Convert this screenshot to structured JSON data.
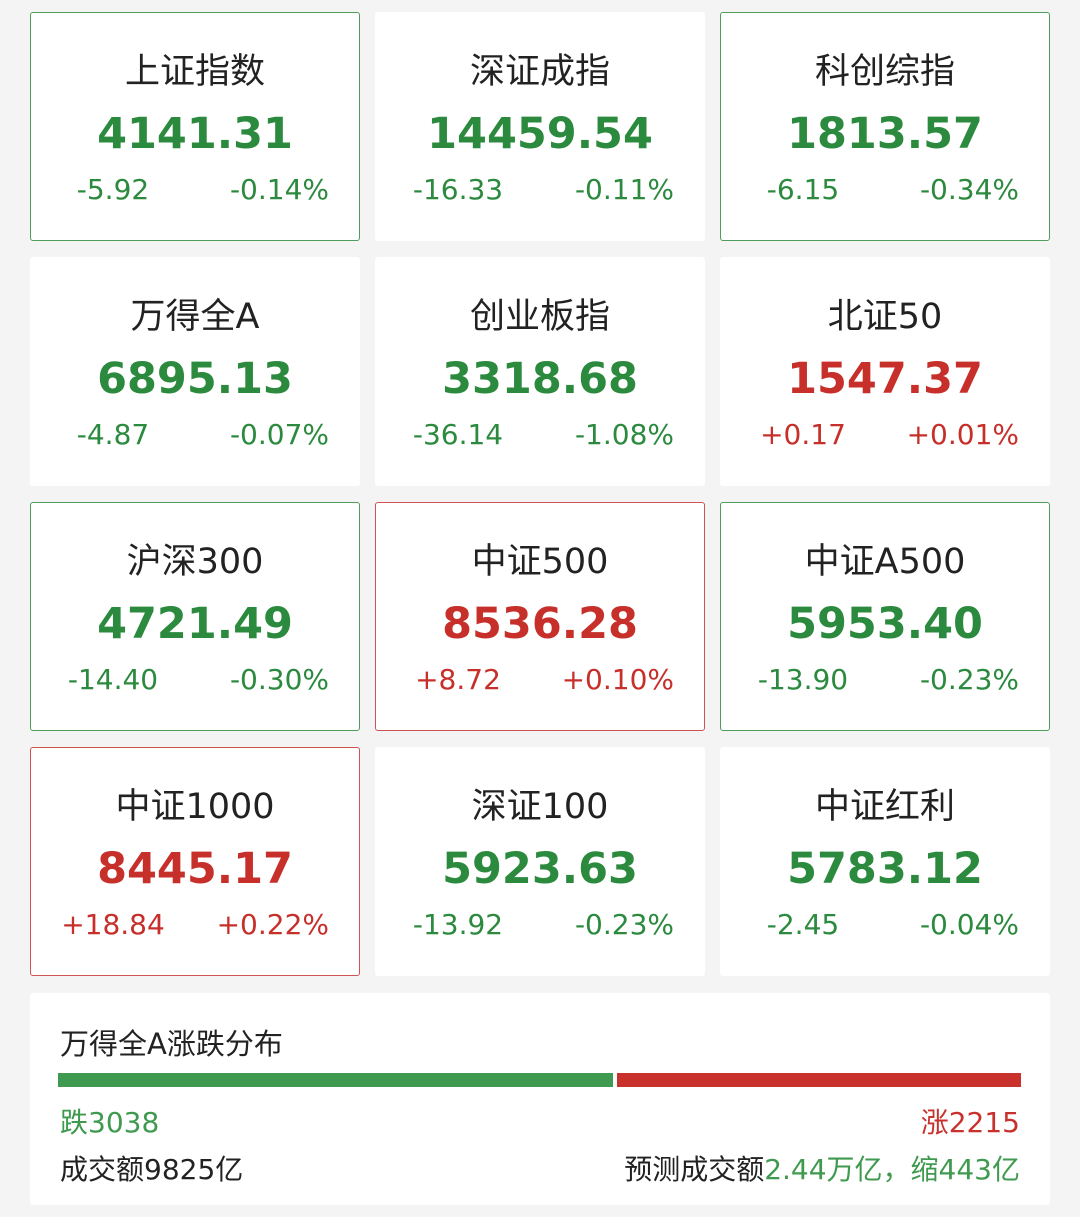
{
  "cards": [
    {
      "name": "上证指数",
      "value": "4141.31",
      "change": "-5.92",
      "pct": "-0.14%",
      "color": "#2b8a3e",
      "border": "#4e9d58"
    },
    {
      "name": "深证成指",
      "value": "14459.54",
      "change": "-16.33",
      "pct": "-0.11%",
      "color": "#2b8a3e"
    },
    {
      "name": "科创综指",
      "value": "1813.57",
      "change": "-6.15",
      "pct": "-0.34%",
      "color": "#2b8a3e",
      "border": "#4e9d58"
    },
    {
      "name": "万得全A",
      "value": "6895.13",
      "change": "-4.87",
      "pct": "-0.07%",
      "color": "#2b8a3e"
    },
    {
      "name": "创业板指",
      "value": "3318.68",
      "change": "-36.14",
      "pct": "-1.08%",
      "color": "#2b8a3e"
    },
    {
      "name": "北证50",
      "value": "1547.37",
      "change": "+0.17",
      "pct": "+0.01%",
      "color": "#c62f2a"
    },
    {
      "name": "沪深300",
      "value": "4721.49",
      "change": "-14.40",
      "pct": "-0.30%",
      "color": "#2b8a3e",
      "border": "#4e9d58"
    },
    {
      "name": "中证500",
      "value": "8536.28",
      "change": "+8.72",
      "pct": "+0.10%",
      "color": "#c62f2a",
      "border": "#d05252"
    },
    {
      "name": "中证A500",
      "value": "5953.40",
      "change": "-13.90",
      "pct": "-0.23%",
      "color": "#2b8a3e",
      "border": "#4e9d58"
    },
    {
      "name": "中证1000",
      "value": "8445.17",
      "change": "+18.84",
      "pct": "+0.22%",
      "color": "#c62f2a",
      "border": "#d05252"
    },
    {
      "name": "深证100",
      "value": "5923.63",
      "change": "-13.92",
      "pct": "-0.23%",
      "color": "#2b8a3e"
    },
    {
      "name": "中证红利",
      "value": "5783.12",
      "change": "-2.45",
      "pct": "-0.04%",
      "color": "#2b8a3e"
    }
  ],
  "distribution": {
    "title": "万得全A涨跌分布",
    "fall_label": "跌",
    "fall": 3038,
    "fall_color": "#3f9a4f",
    "rise_label": "涨",
    "rise": 2215,
    "rise_color": "#c9312c",
    "turnover": "成交额9825亿",
    "forecast_label": "预测成交额",
    "forecast_value": "2.44万亿，缩443亿"
  }
}
